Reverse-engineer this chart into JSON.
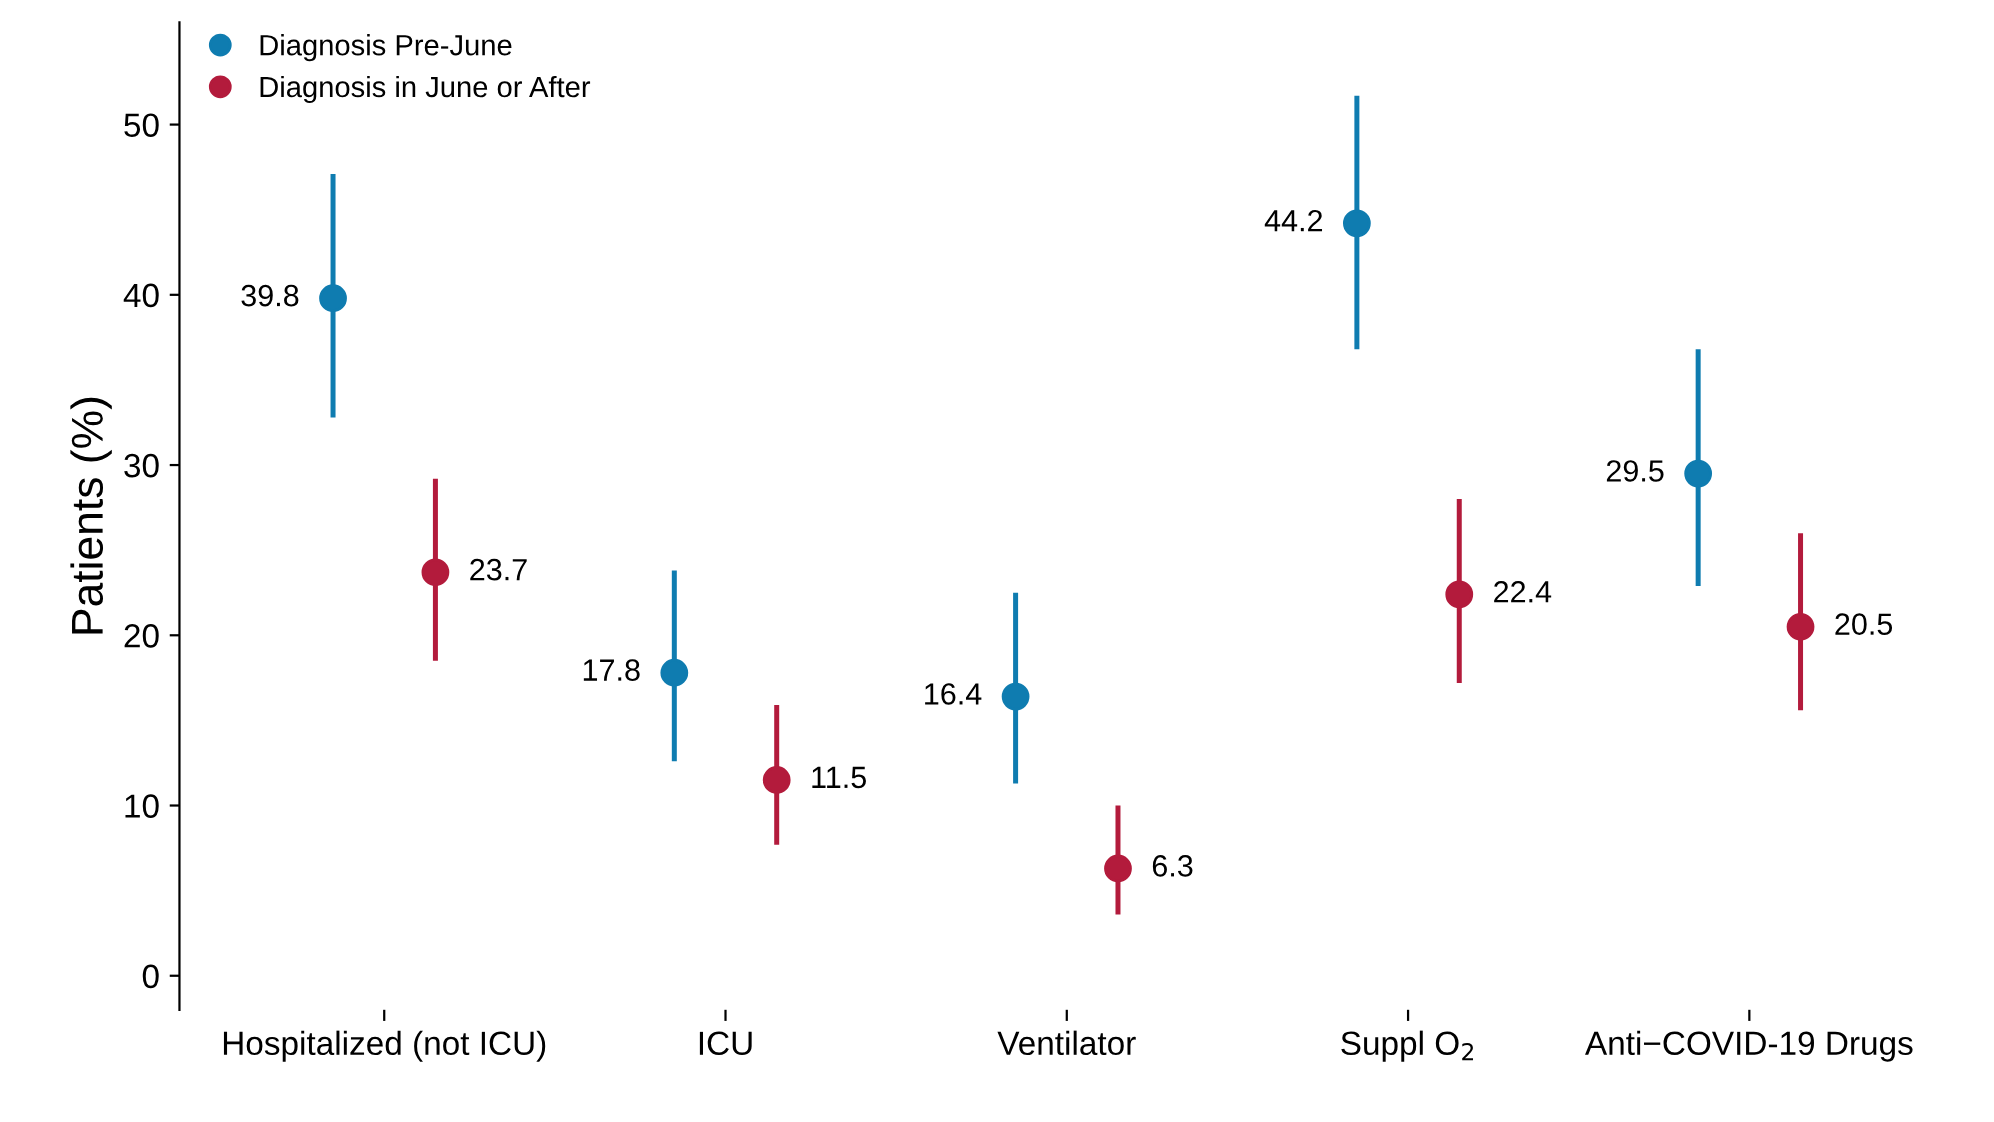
{
  "chart_data": {
    "type": "scatter",
    "ylabel": "Patients (%)",
    "categories": [
      "Hospitalized (not ICU)",
      "ICU",
      "Ventilator",
      "Suppl O$_{2}$",
      "Anti−COVID-19 Drugs"
    ],
    "series": [
      {
        "name": "Diagnosis Pre-June",
        "color": "#0f7cb0",
        "values": [
          39.8,
          17.8,
          16.4,
          44.2,
          29.5
        ],
        "errors": [
          [
            32.8,
            47.1
          ],
          [
            12.6,
            23.8
          ],
          [
            11.3,
            22.5
          ],
          [
            36.8,
            51.7
          ],
          [
            22.9,
            36.8
          ]
        ]
      },
      {
        "name": "Diagnosis in June or After",
        "color": "#b31b3c",
        "values": [
          23.7,
          11.5,
          6.3,
          22.4,
          20.5
        ],
        "errors": [
          [
            18.5,
            29.2
          ],
          [
            7.7,
            15.9
          ],
          [
            3.6,
            10.0
          ],
          [
            17.2,
            28.0
          ],
          [
            15.6,
            26.0
          ]
        ]
      }
    ],
    "ylim": [
      -2,
      56
    ],
    "yticks": [
      0,
      10,
      20,
      30,
      40,
      50
    ],
    "grid": false,
    "legend": "top left",
    "marker": "circle",
    "data_labels": true
  }
}
